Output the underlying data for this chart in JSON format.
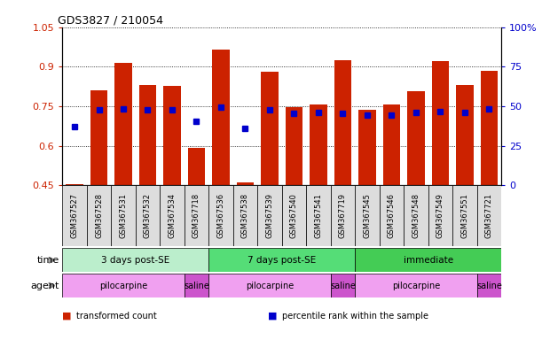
{
  "title": "GDS3827 / 210054",
  "samples": [
    "GSM367527",
    "GSM367528",
    "GSM367531",
    "GSM367532",
    "GSM367534",
    "GSM367718",
    "GSM367536",
    "GSM367538",
    "GSM367539",
    "GSM367540",
    "GSM367541",
    "GSM367719",
    "GSM367545",
    "GSM367546",
    "GSM367548",
    "GSM367549",
    "GSM367551",
    "GSM367721"
  ],
  "bar_values": [
    0.454,
    0.812,
    0.915,
    0.832,
    0.828,
    0.593,
    0.965,
    0.462,
    0.882,
    0.748,
    0.756,
    0.924,
    0.736,
    0.758,
    0.808,
    0.921,
    0.832,
    0.885
  ],
  "percentile_values": [
    0.672,
    0.737,
    0.74,
    0.737,
    0.737,
    0.693,
    0.748,
    0.665,
    0.735,
    0.723,
    0.726,
    0.722,
    0.717,
    0.718,
    0.726,
    0.729,
    0.726,
    0.741
  ],
  "ylim": [
    0.45,
    1.05
  ],
  "yticks_left": [
    0.45,
    0.6,
    0.75,
    0.9,
    1.05
  ],
  "yticks_right_pct": [
    0,
    25,
    50,
    75,
    100
  ],
  "bar_color": "#cc2200",
  "percentile_color": "#0000cc",
  "time_groups": [
    {
      "label": "3 days post-SE",
      "start": 0,
      "end": 5,
      "color": "#bbeecc"
    },
    {
      "label": "7 days post-SE",
      "start": 6,
      "end": 11,
      "color": "#55dd77"
    },
    {
      "label": "immediate",
      "start": 12,
      "end": 17,
      "color": "#44cc55"
    }
  ],
  "agent_groups": [
    {
      "label": "pilocarpine",
      "start": 0,
      "end": 4,
      "color": "#f0a0f0"
    },
    {
      "label": "saline",
      "start": 5,
      "end": 5,
      "color": "#cc55cc"
    },
    {
      "label": "pilocarpine",
      "start": 6,
      "end": 10,
      "color": "#f0a0f0"
    },
    {
      "label": "saline",
      "start": 11,
      "end": 11,
      "color": "#cc55cc"
    },
    {
      "label": "pilocarpine",
      "start": 12,
      "end": 16,
      "color": "#f0a0f0"
    },
    {
      "label": "saline",
      "start": 17,
      "end": 17,
      "color": "#cc55cc"
    }
  ],
  "legend_items": [
    {
      "label": "transformed count",
      "color": "#cc2200"
    },
    {
      "label": "percentile rank within the sample",
      "color": "#0000cc"
    }
  ],
  "bg_color": "#ffffff",
  "tick_label_color_left": "#cc2200",
  "tick_label_color_right": "#0000cc",
  "sample_box_color": "#dddddd",
  "bar_width": 0.7
}
